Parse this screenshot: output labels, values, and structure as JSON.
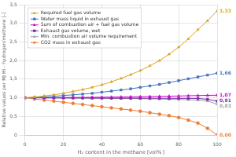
{
  "chart_data": {
    "type": "line",
    "xlabel": "H₂ content in the methane [vol% ]",
    "ylabel": "Relative values per MJ Hi - hydrogen/methane [-]",
    "x": [
      0,
      5,
      10,
      15,
      20,
      25,
      30,
      35,
      40,
      45,
      50,
      55,
      60,
      65,
      70,
      75,
      80,
      85,
      90,
      95,
      100
    ],
    "series": [
      {
        "name": "Required fuel gas volume",
        "color": "#DAA520",
        "marker": "triangle",
        "values": [
          1.0,
          1.02,
          1.05,
          1.08,
          1.12,
          1.17,
          1.22,
          1.28,
          1.35,
          1.43,
          1.52,
          1.62,
          1.73,
          1.86,
          2.0,
          2.17,
          2.36,
          2.58,
          2.83,
          3.07,
          3.33
        ]
      },
      {
        "name": "Water mass liquid in exhaust gas",
        "color": "#4472C4",
        "marker": "square",
        "values": [
          1.0,
          1.01,
          1.02,
          1.04,
          1.06,
          1.08,
          1.1,
          1.12,
          1.15,
          1.18,
          1.21,
          1.24,
          1.28,
          1.32,
          1.36,
          1.41,
          1.46,
          1.51,
          1.56,
          1.61,
          1.66
        ]
      },
      {
        "name": "Sum of combustion air + fuel gas volume",
        "color": "#CC00CC",
        "marker": "triangle",
        "values": [
          1.0,
          1.001,
          1.002,
          1.004,
          1.006,
          1.008,
          1.011,
          1.013,
          1.016,
          1.019,
          1.022,
          1.026,
          1.03,
          1.034,
          1.038,
          1.043,
          1.048,
          1.054,
          1.059,
          1.065,
          1.07
        ]
      },
      {
        "name": "Exhaust gas volume, wet",
        "color": "#7030A0",
        "marker": "square",
        "values": [
          1.0,
          0.999,
          0.998,
          0.997,
          0.996,
          0.995,
          0.994,
          0.993,
          0.992,
          0.991,
          0.99,
          0.989,
          0.988,
          0.987,
          0.986,
          0.985,
          0.984,
          0.983,
          0.982,
          0.96,
          0.91
        ]
      },
      {
        "name": "Min. combustion air volume requirement",
        "color": "#A0A0A0",
        "marker": "triangle",
        "values": [
          1.0,
          0.998,
          0.996,
          0.994,
          0.992,
          0.99,
          0.988,
          0.986,
          0.984,
          0.982,
          0.98,
          0.978,
          0.974,
          0.97,
          0.966,
          0.96,
          0.954,
          0.947,
          0.937,
          0.912,
          0.83
        ]
      },
      {
        "name": "CO2 mass in exhaust gas",
        "color": "#ED7D31",
        "marker": "circle",
        "values": [
          1.0,
          0.97,
          0.94,
          0.91,
          0.88,
          0.85,
          0.82,
          0.79,
          0.76,
          0.73,
          0.7,
          0.67,
          0.64,
          0.6,
          0.56,
          0.52,
          0.47,
          0.4,
          0.32,
          0.18,
          0.0
        ]
      }
    ],
    "annotations": [
      {
        "text": "3,33",
        "y": 3.33,
        "color": "#DAA520"
      },
      {
        "text": "1,66",
        "y": 1.66,
        "color": "#4472C4"
      },
      {
        "text": "1,07",
        "y": 1.07,
        "color": "#CC00CC"
      },
      {
        "text": "0,91",
        "y": 0.91,
        "color": "#7030A0"
      },
      {
        "text": "0,83",
        "y": 0.83,
        "color": "#A0A0A0"
      },
      {
        "text": "0,00",
        "y": 0.0,
        "color": "#ED7D31"
      }
    ],
    "xlim": [
      0,
      100
    ],
    "xticks": [
      0,
      20,
      40,
      60,
      80,
      100
    ],
    "ylim": [
      0,
      3.5
    ],
    "yticks": [
      0,
      {
        "value": 0.5,
        "label": "0,5"
      },
      {
        "value": 1.0,
        "label": "1,0"
      },
      {
        "value": 1.5,
        "label": "1,5"
      },
      {
        "value": 2.0,
        "label": "2,0"
      },
      {
        "value": 2.5,
        "label": "2,5"
      },
      {
        "value": 3.0,
        "label": "3,0"
      },
      {
        "value": 3.5,
        "label": "3,5"
      }
    ],
    "grid": true,
    "legend": "upper left"
  }
}
